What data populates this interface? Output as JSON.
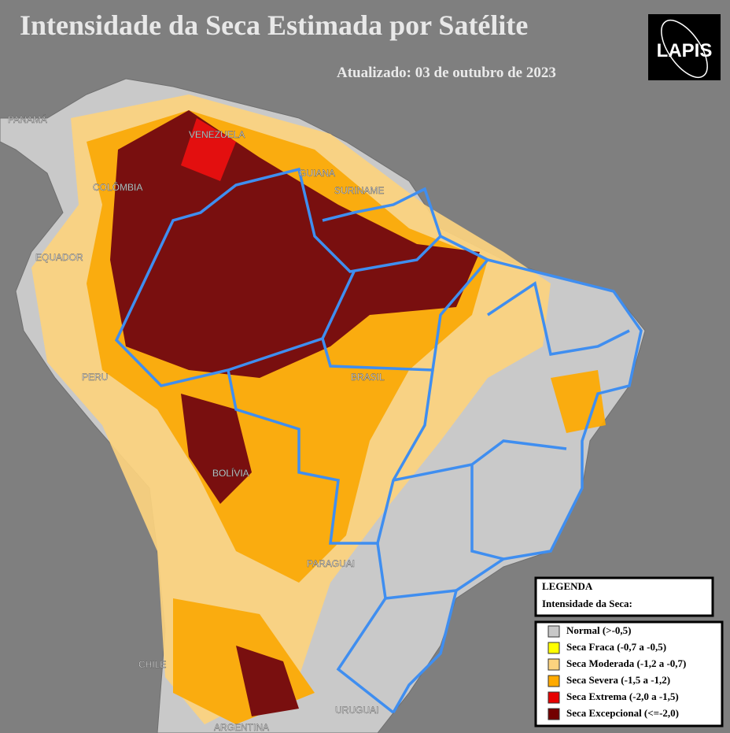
{
  "header": {
    "title": "Intensidade da Seca Estimada por Satélite",
    "updated": "Atualizado: 03 de outubro de 2023",
    "logo": "LAPIS"
  },
  "map": {
    "labels": [
      "PANAMÁ",
      "VENEZUELA",
      "GUIANA",
      "SURINAME",
      "COLÔMBIA",
      "EQUADOR",
      "PERU",
      "BRASIL",
      "BOLÍVIA",
      "PARAGUAI",
      "CHILE",
      "URUGUAI",
      "ARGENTINA"
    ]
  },
  "legend": {
    "title": [
      "LEGENDA",
      "Intensidade da Seca:"
    ],
    "items": [
      {
        "label": "Normal (>-0,5)",
        "color": "#c8c8c8"
      },
      {
        "label": "Seca Fraca (-0,7 a -0,5)",
        "color": "#ffff00"
      },
      {
        "label": "Seca Moderada (-1,2 a -0,7)",
        "color": "#fcd37f"
      },
      {
        "label": "Seca Severa (-1,5 a -1,2)",
        "color": "#ffaa00"
      },
      {
        "label": "Seca Extrema (-2,0 a -1,5)",
        "color": "#e60000"
      },
      {
        "label": "Seca Excepcional (<=-2,0)",
        "color": "#730000"
      }
    ]
  }
}
